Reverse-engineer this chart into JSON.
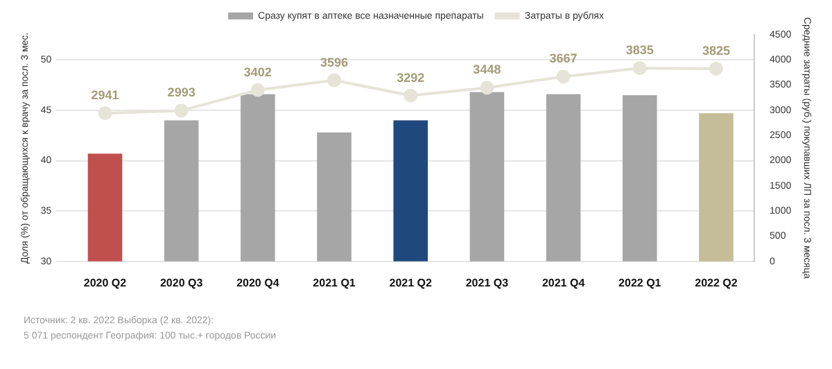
{
  "chart_data": {
    "type": "bar",
    "ylabel": "Доля (%) от обращающихся к врачу за посл. 3 мес.",
    "y2label": "Средние затраты (руб.) покупавших ЛП за посл. 3 месяца",
    "categories": [
      "2020 Q2",
      "2020 Q3",
      "2020 Q4",
      "2021 Q1",
      "2021 Q2",
      "2021 Q3",
      "2021 Q4",
      "2022 Q1",
      "2022 Q2"
    ],
    "series": [
      {
        "name": "Сразу купят в аптеке все назначенные препараты",
        "color": "#a6a6a6",
        "colors": [
          "#c0504d",
          "#a6a6a6",
          "#a6a6a6",
          "#a6a6a6",
          "#1f497d",
          "#a6a6a6",
          "#a6a6a6",
          "#a6a6a6",
          "#c4bd97"
        ],
        "values": [
          40.7,
          44.0,
          46.6,
          42.8,
          44.0,
          46.8,
          46.6,
          46.5,
          44.7
        ]
      },
      {
        "name": "Затраты в рублях",
        "type": "line",
        "axis": "y2",
        "color": "#e6e4d8",
        "values": [
          2941,
          2993,
          3402,
          3596,
          3292,
          3448,
          3667,
          3835,
          3825
        ],
        "value_labels": [
          "2941",
          "2993",
          "3402",
          "3596",
          "3292",
          "3448",
          "3667",
          "3835",
          "3825"
        ]
      }
    ],
    "ylim": [
      30,
      52.5
    ],
    "yticks": [
      30,
      35,
      40,
      45,
      50
    ],
    "y2lim": [
      0,
      4500
    ],
    "y2ticks": [
      0,
      500,
      1000,
      1500,
      2000,
      2500,
      3000,
      3500,
      4000,
      4500
    ],
    "grid": "y",
    "legend": "top",
    "marker": "circle",
    "annotations": [
      "Источник: 2 кв. 2022 Выборка (2 кв. 2022):",
      "5 071 респондент География: 100 тыс.+ городов России"
    ]
  }
}
